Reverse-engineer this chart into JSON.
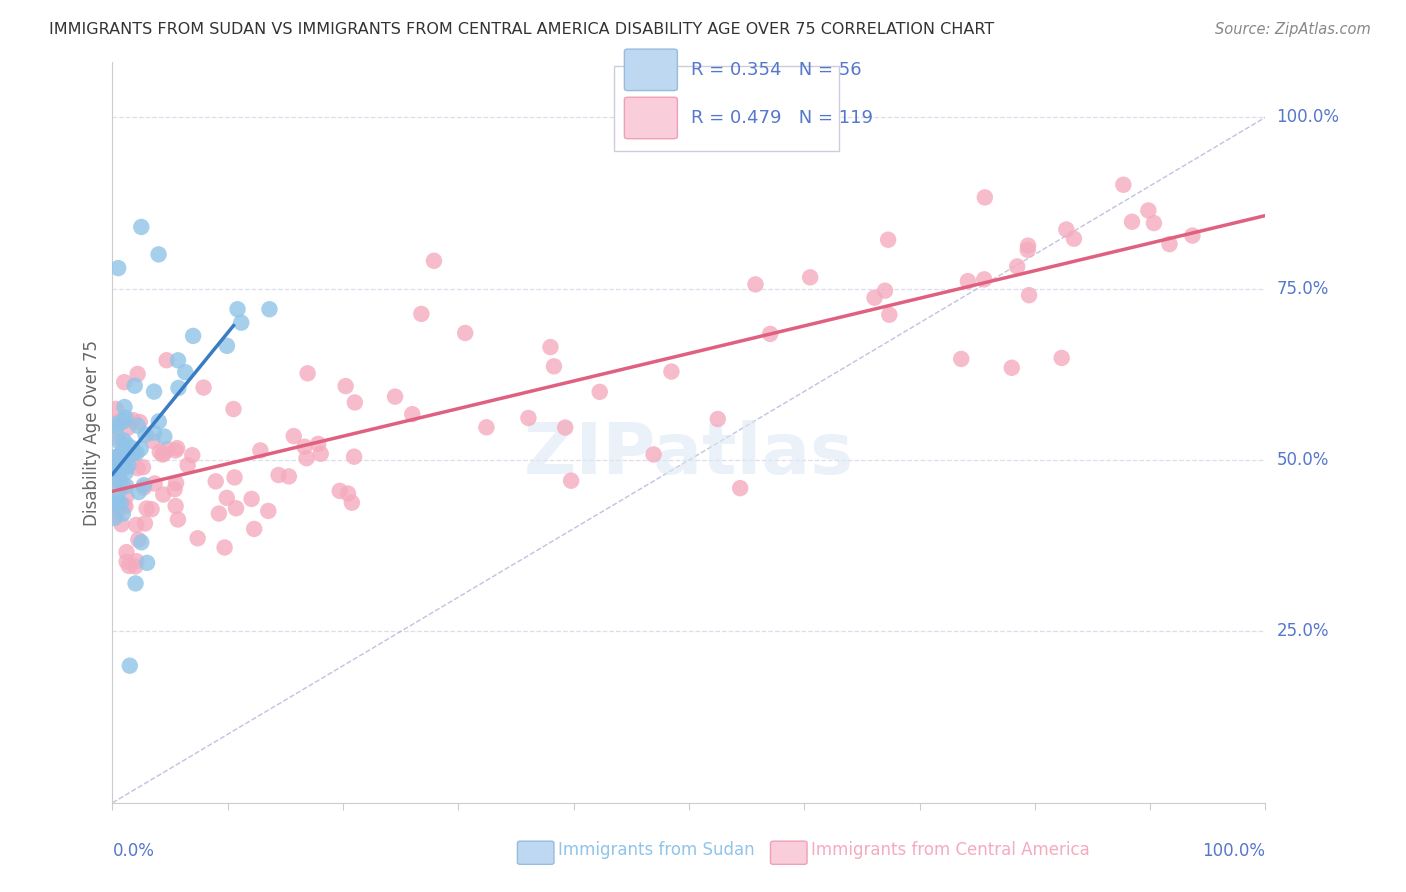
{
  "title": "IMMIGRANTS FROM SUDAN VS IMMIGRANTS FROM CENTRAL AMERICA DISABILITY AGE OVER 75 CORRELATION CHART",
  "source": "Source: ZipAtlas.com",
  "ylabel": "Disability Age Over 75",
  "ylabel_right_labels": [
    "100.0%",
    "75.0%",
    "50.0%",
    "25.0%"
  ],
  "ylabel_right_positions": [
    1.0,
    0.75,
    0.5,
    0.25
  ],
  "xlim": [
    0.0,
    1.0
  ],
  "ylim": [
    0.0,
    1.08
  ],
  "sudan_R": 0.354,
  "sudan_N": 56,
  "central_R": 0.479,
  "central_N": 119,
  "sudan_color": "#90C4E8",
  "central_color": "#F5ABBE",
  "sudan_line_color": "#3A7CC3",
  "central_line_color": "#E06080",
  "diagonal_color": "#BBBBDD",
  "legend_sudan_fill": "#BDD8F0",
  "legend_central_fill": "#F9CEDA",
  "grid_color": "#DDDDEE",
  "spine_color": "#CCCCCC",
  "title_color": "#333333",
  "source_color": "#888888",
  "axis_label_color": "#5577CC",
  "ylabel_color": "#666666",
  "bottom_sudan_label_color": "#90C4E8",
  "bottom_central_label_color": "#F5ABBE"
}
